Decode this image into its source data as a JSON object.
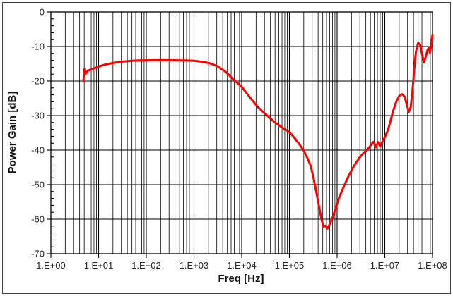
{
  "window": {
    "background": "#ffffff",
    "border_color": "#3f3f46"
  },
  "chart_data": {
    "type": "line",
    "title": "",
    "xlabel": "Freq [Hz]",
    "ylabel": "Power Gain [dB]",
    "x_scale": "log",
    "xlim_log10": [
      0,
      8
    ],
    "ylim": [
      -70,
      0
    ],
    "y_major_step": 10,
    "y_minor_step": 2,
    "grid": "vertical log decades with 2-9 minors, horizontal every 10 dB, grid on",
    "gridline_color": "#000000",
    "legend": "none",
    "x_tick_labels": [
      "1.E+00",
      "1.E+01",
      "1.E+02",
      "1.E+03",
      "1.E+04",
      "1.E+05",
      "1.E+06",
      "1.E+07",
      "1.E+08"
    ],
    "y_tick_labels": [
      "0",
      "-10",
      "-20",
      "-30",
      "-40",
      "-50",
      "-60",
      "-70"
    ],
    "series": [
      {
        "name": "Power Gain",
        "color": "#ff0000",
        "line_width": 3,
        "points": [
          [
            4.8,
            -20.0
          ],
          [
            5.0,
            -16.6
          ],
          [
            5.4,
            -17.9
          ],
          [
            6.0,
            -16.9
          ],
          [
            7.0,
            -16.7
          ],
          [
            8.5,
            -16.2
          ],
          [
            10,
            -15.8
          ],
          [
            13,
            -15.3
          ],
          [
            18,
            -14.9
          ],
          [
            25,
            -14.55
          ],
          [
            35,
            -14.3
          ],
          [
            50,
            -14.15
          ],
          [
            70,
            -14.05
          ],
          [
            100,
            -14.0
          ],
          [
            150,
            -13.95
          ],
          [
            220,
            -13.95
          ],
          [
            320,
            -13.95
          ],
          [
            470,
            -14.0
          ],
          [
            680,
            -14.05
          ],
          [
            1000,
            -14.15
          ],
          [
            1500,
            -14.4
          ],
          [
            2200,
            -14.9
          ],
          [
            3200,
            -15.8
          ],
          [
            4700,
            -17.4
          ],
          [
            6800,
            -19.6
          ],
          [
            10000,
            -21.7
          ],
          [
            15000,
            -24.8
          ],
          [
            22000,
            -27.6
          ],
          [
            33000,
            -29.8
          ],
          [
            47000,
            -31.7
          ],
          [
            68000,
            -33.3
          ],
          [
            100000,
            -34.8
          ],
          [
            130000,
            -36.6
          ],
          [
            160000,
            -38.2
          ],
          [
            200000,
            -40.2
          ],
          [
            240000,
            -42.4
          ],
          [
            280000,
            -44.6
          ],
          [
            320000,
            -48.0
          ],
          [
            370000,
            -52.5
          ],
          [
            420000,
            -56.5
          ],
          [
            470000,
            -60.0
          ],
          [
            520000,
            -62.2
          ],
          [
            570000,
            -61.9
          ],
          [
            630000,
            -62.7
          ],
          [
            700000,
            -61.4
          ],
          [
            800000,
            -59.6
          ],
          [
            950000,
            -56.5
          ],
          [
            1100000,
            -53.8
          ],
          [
            1400000,
            -50.3
          ],
          [
            1800000,
            -47.1
          ],
          [
            2300000,
            -44.4
          ],
          [
            2900000,
            -42.3
          ],
          [
            3600000,
            -40.8
          ],
          [
            4400000,
            -39.7
          ],
          [
            5200000,
            -38.4
          ],
          [
            5800000,
            -37.6
          ],
          [
            6500000,
            -39.2
          ],
          [
            7200000,
            -37.7
          ],
          [
            8000000,
            -38.9
          ],
          [
            9000000,
            -37.4
          ],
          [
            10000000,
            -36.3
          ],
          [
            11500000,
            -34.4
          ],
          [
            13000000,
            -31.8
          ],
          [
            15000000,
            -28.6
          ],
          [
            17000000,
            -26.3
          ],
          [
            20000000,
            -24.3
          ],
          [
            23000000,
            -23.8
          ],
          [
            26000000,
            -24.5
          ],
          [
            29000000,
            -26.9
          ],
          [
            32000000,
            -28.9
          ],
          [
            35000000,
            -27.5
          ],
          [
            38000000,
            -23.0
          ],
          [
            41000000,
            -17.0
          ],
          [
            45000000,
            -11.5
          ],
          [
            50000000,
            -8.9
          ],
          [
            55000000,
            -9.5
          ],
          [
            60000000,
            -12.0
          ],
          [
            66000000,
            -14.6
          ],
          [
            72000000,
            -13.0
          ],
          [
            79000000,
            -10.9
          ],
          [
            84000000,
            -10.4
          ],
          [
            88000000,
            -11.9
          ],
          [
            93000000,
            -10.0
          ],
          [
            97000000,
            -8.0
          ],
          [
            100000000,
            -6.6
          ]
        ]
      }
    ]
  }
}
